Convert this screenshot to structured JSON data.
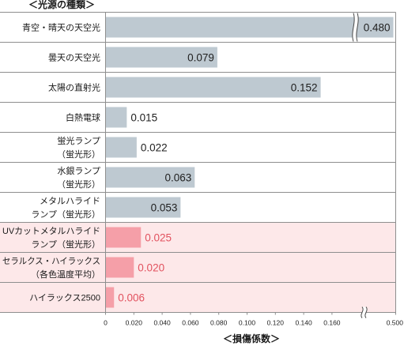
{
  "chart_data": {
    "type": "bar",
    "orientation": "horizontal",
    "ylabel": "＜光源の種類＞",
    "xlabel": "＜損傷係数＞",
    "categories": [
      [
        "青空・晴天の天空光"
      ],
      [
        "曇天の天空光"
      ],
      [
        "太陽の直射光"
      ],
      [
        "白熱電球"
      ],
      [
        "蛍光ランプ",
        "（蛍光形）"
      ],
      [
        "水銀ランプ",
        "（蛍光形）"
      ],
      [
        "メタルハライド",
        "ランプ（蛍光形）"
      ],
      [
        "UVカットメタルハライド",
        "ランプ（蛍光形）"
      ],
      [
        "セラルクス・ハイラックス",
        "（各色温度平均）"
      ],
      [
        "ハイラックス2500"
      ]
    ],
    "values": [
      0.48,
      0.079,
      0.152,
      0.015,
      0.022,
      0.063,
      0.053,
      0.025,
      0.02,
      0.006
    ],
    "data_labels": [
      "0.480",
      "0.079",
      "0.152",
      "0.015",
      "0.022",
      "0.063",
      "0.053",
      "0.025",
      "0.020",
      "0.006"
    ],
    "highlighted": [
      false,
      false,
      false,
      false,
      false,
      false,
      false,
      true,
      true,
      true
    ],
    "xlim": [
      0,
      0.5
    ],
    "x_axis_break": [
      0.16,
      0.5
    ],
    "x_ticks": [
      0,
      0.02,
      0.04,
      0.06,
      0.08,
      0.1,
      0.12,
      0.14,
      0.16,
      0.5
    ],
    "x_tick_labels": [
      "0",
      "0.020",
      "0.040",
      "0.060",
      "0.080",
      "0.100",
      "0.120",
      "0.140",
      "0.160",
      "0.500"
    ],
    "colors": {
      "bar": "#bec9d1",
      "bar_highlight": "#f59fa8",
      "row_highlight": "#fde8e9",
      "value": "#1f1f1f",
      "value_highlight": "#e2525f",
      "rule": "#8e8e8e"
    }
  }
}
